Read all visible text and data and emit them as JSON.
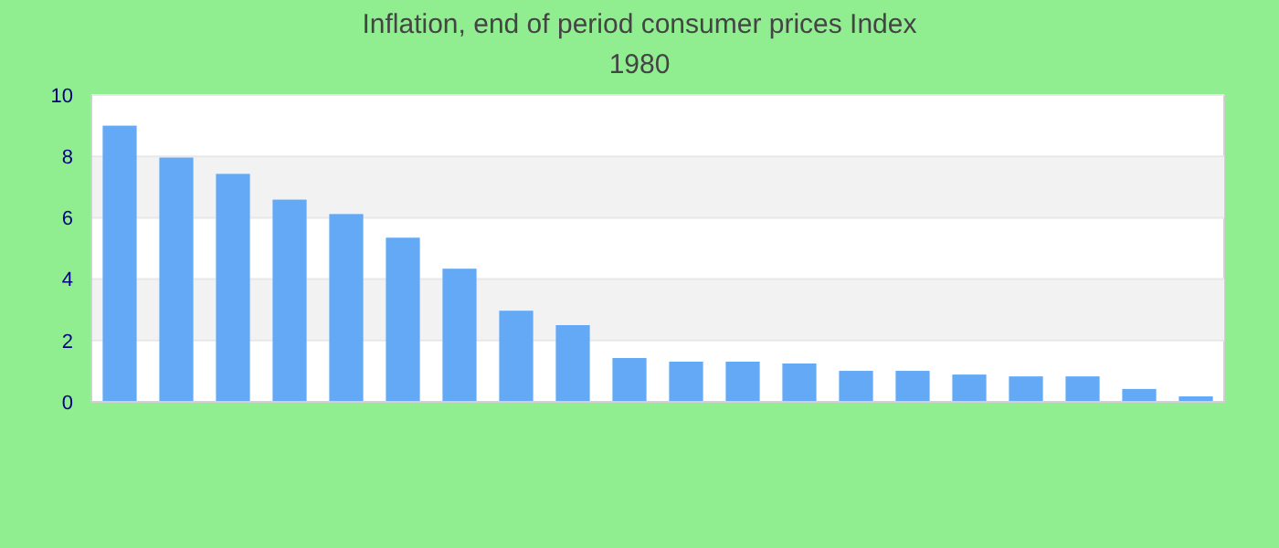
{
  "chart_data": {
    "type": "bar",
    "title": "Inflation, end of period consumer prices  Index",
    "subtitle": "1980",
    "categories": [
      null,
      null,
      null,
      null,
      null,
      null,
      null,
      null,
      null,
      null,
      null,
      null,
      null,
      null,
      null,
      null,
      null,
      null,
      null,
      null
    ],
    "values": [
      9.0,
      7.96,
      7.43,
      6.59,
      6.12,
      5.35,
      4.34,
      2.97,
      2.5,
      1.43,
      1.31,
      1.31,
      1.25,
      1.01,
      1.01,
      0.89,
      0.83,
      0.83,
      0.42,
      0.18
    ],
    "color": "#63a9f5",
    "ylim": [
      0,
      10
    ],
    "yticks": [
      0,
      2,
      4,
      6,
      8,
      10
    ],
    "grid": "y"
  }
}
